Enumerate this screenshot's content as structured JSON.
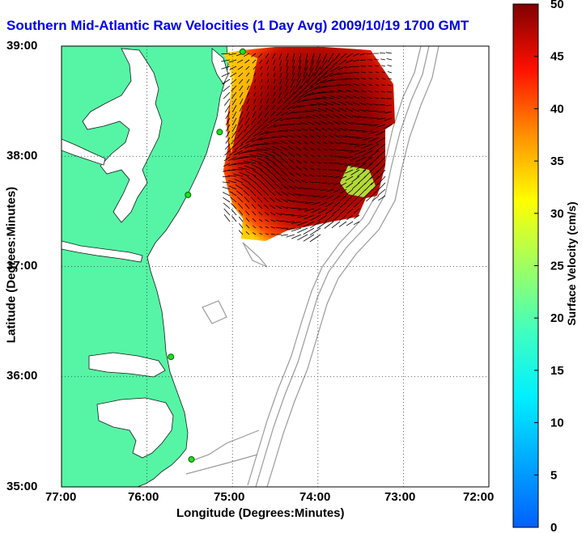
{
  "title": "Southern Mid-Atlantic Raw Velocities (1 Day Avg) 2009/10/19 1700 GMT",
  "map": {
    "xlabel": "Longitude (Degrees:Minutes)",
    "ylabel": "Latitude (Degrees:Minutes)",
    "x_ticks": [
      "77:00",
      "76:00",
      "75:00",
      "74:00",
      "73:00",
      "72:00"
    ],
    "y_ticks": [
      "39:00",
      "38:00",
      "37:00",
      "36:00",
      "35:00"
    ],
    "xlim": [
      -77,
      -72
    ],
    "ylim": [
      35,
      39
    ],
    "grid": "dotted",
    "land_color": "#55f5a5",
    "contour_color": "#9a9a9a"
  },
  "colorbar": {
    "label": "Surface Velocity (cm/s)",
    "ticks": [
      "0",
      "5",
      "10",
      "15",
      "20",
      "25",
      "30",
      "35",
      "40",
      "45",
      "50"
    ],
    "range": [
      0,
      50
    ],
    "colormap": "jet"
  },
  "stations": [
    {
      "lon": -74.88,
      "lat": 38.95
    },
    {
      "lon": -75.15,
      "lat": 38.22
    },
    {
      "lon": -75.52,
      "lat": 37.65
    },
    {
      "lon": -75.72,
      "lat": 36.18
    },
    {
      "lon": -75.48,
      "lat": 35.25
    }
  ],
  "station_color": "#22dd22"
}
